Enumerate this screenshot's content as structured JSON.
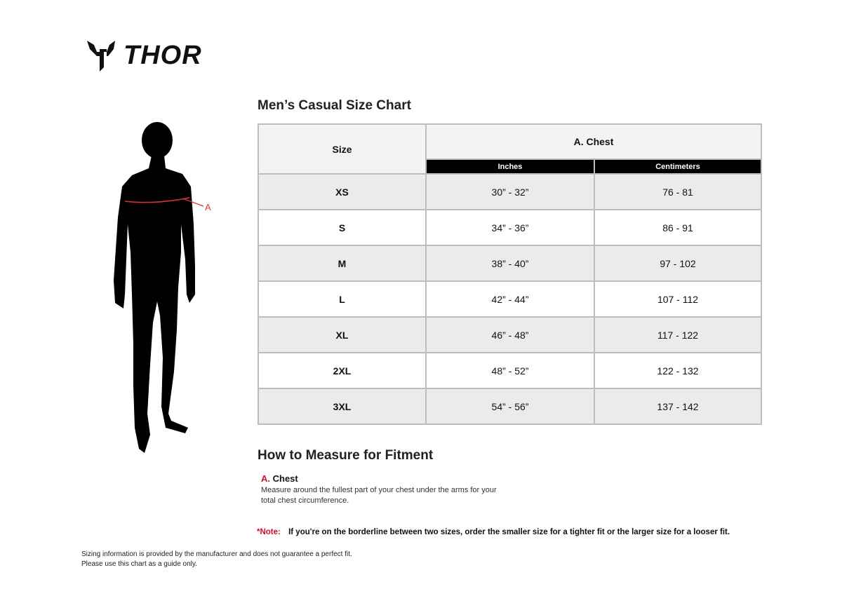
{
  "logo": {
    "text": "THOR"
  },
  "figure": {
    "marker_label": "A",
    "marker_color": "#d9343a"
  },
  "chart_title": "Men’s Casual Size Chart",
  "table": {
    "size_header": "Size",
    "group_header": "A. Chest",
    "sub_headers": [
      "Inches",
      "Centimeters"
    ],
    "rows": [
      {
        "size": "XS",
        "inches": "30” - 32”",
        "cm": "76 - 81"
      },
      {
        "size": "S",
        "inches": "34” - 36”",
        "cm": "86 - 91"
      },
      {
        "size": "M",
        "inches": "38” - 40”",
        "cm": "97 - 102"
      },
      {
        "size": "L",
        "inches": "42” - 44”",
        "cm": "107 - 112"
      },
      {
        "size": "XL",
        "inches": "46” - 48”",
        "cm": "117 - 122"
      },
      {
        "size": "2XL",
        "inches": "48” - 52”",
        "cm": "122 - 132"
      },
      {
        "size": "3XL",
        "inches": "54” - 56”",
        "cm": "137 - 142"
      }
    ]
  },
  "how_to": {
    "title": "How to Measure for Fitment",
    "letter": "A.",
    "label": "Chest",
    "description": "Measure around the fullest part of your chest under the arms for your total chest circumference."
  },
  "note": {
    "label": "*Note:",
    "text": "If you're on the borderline between two sizes, order the smaller size for a tighter fit or the larger size for a looser fit."
  },
  "disclaimer": {
    "line1": "Sizing information is provided by the manufacturer and does not guarantee a perfect fit.",
    "line2": "Please use this chart as a guide only."
  },
  "colors": {
    "accent": "#c8102e",
    "header_bg": "#000000",
    "row_alt": "#ebebeb"
  }
}
